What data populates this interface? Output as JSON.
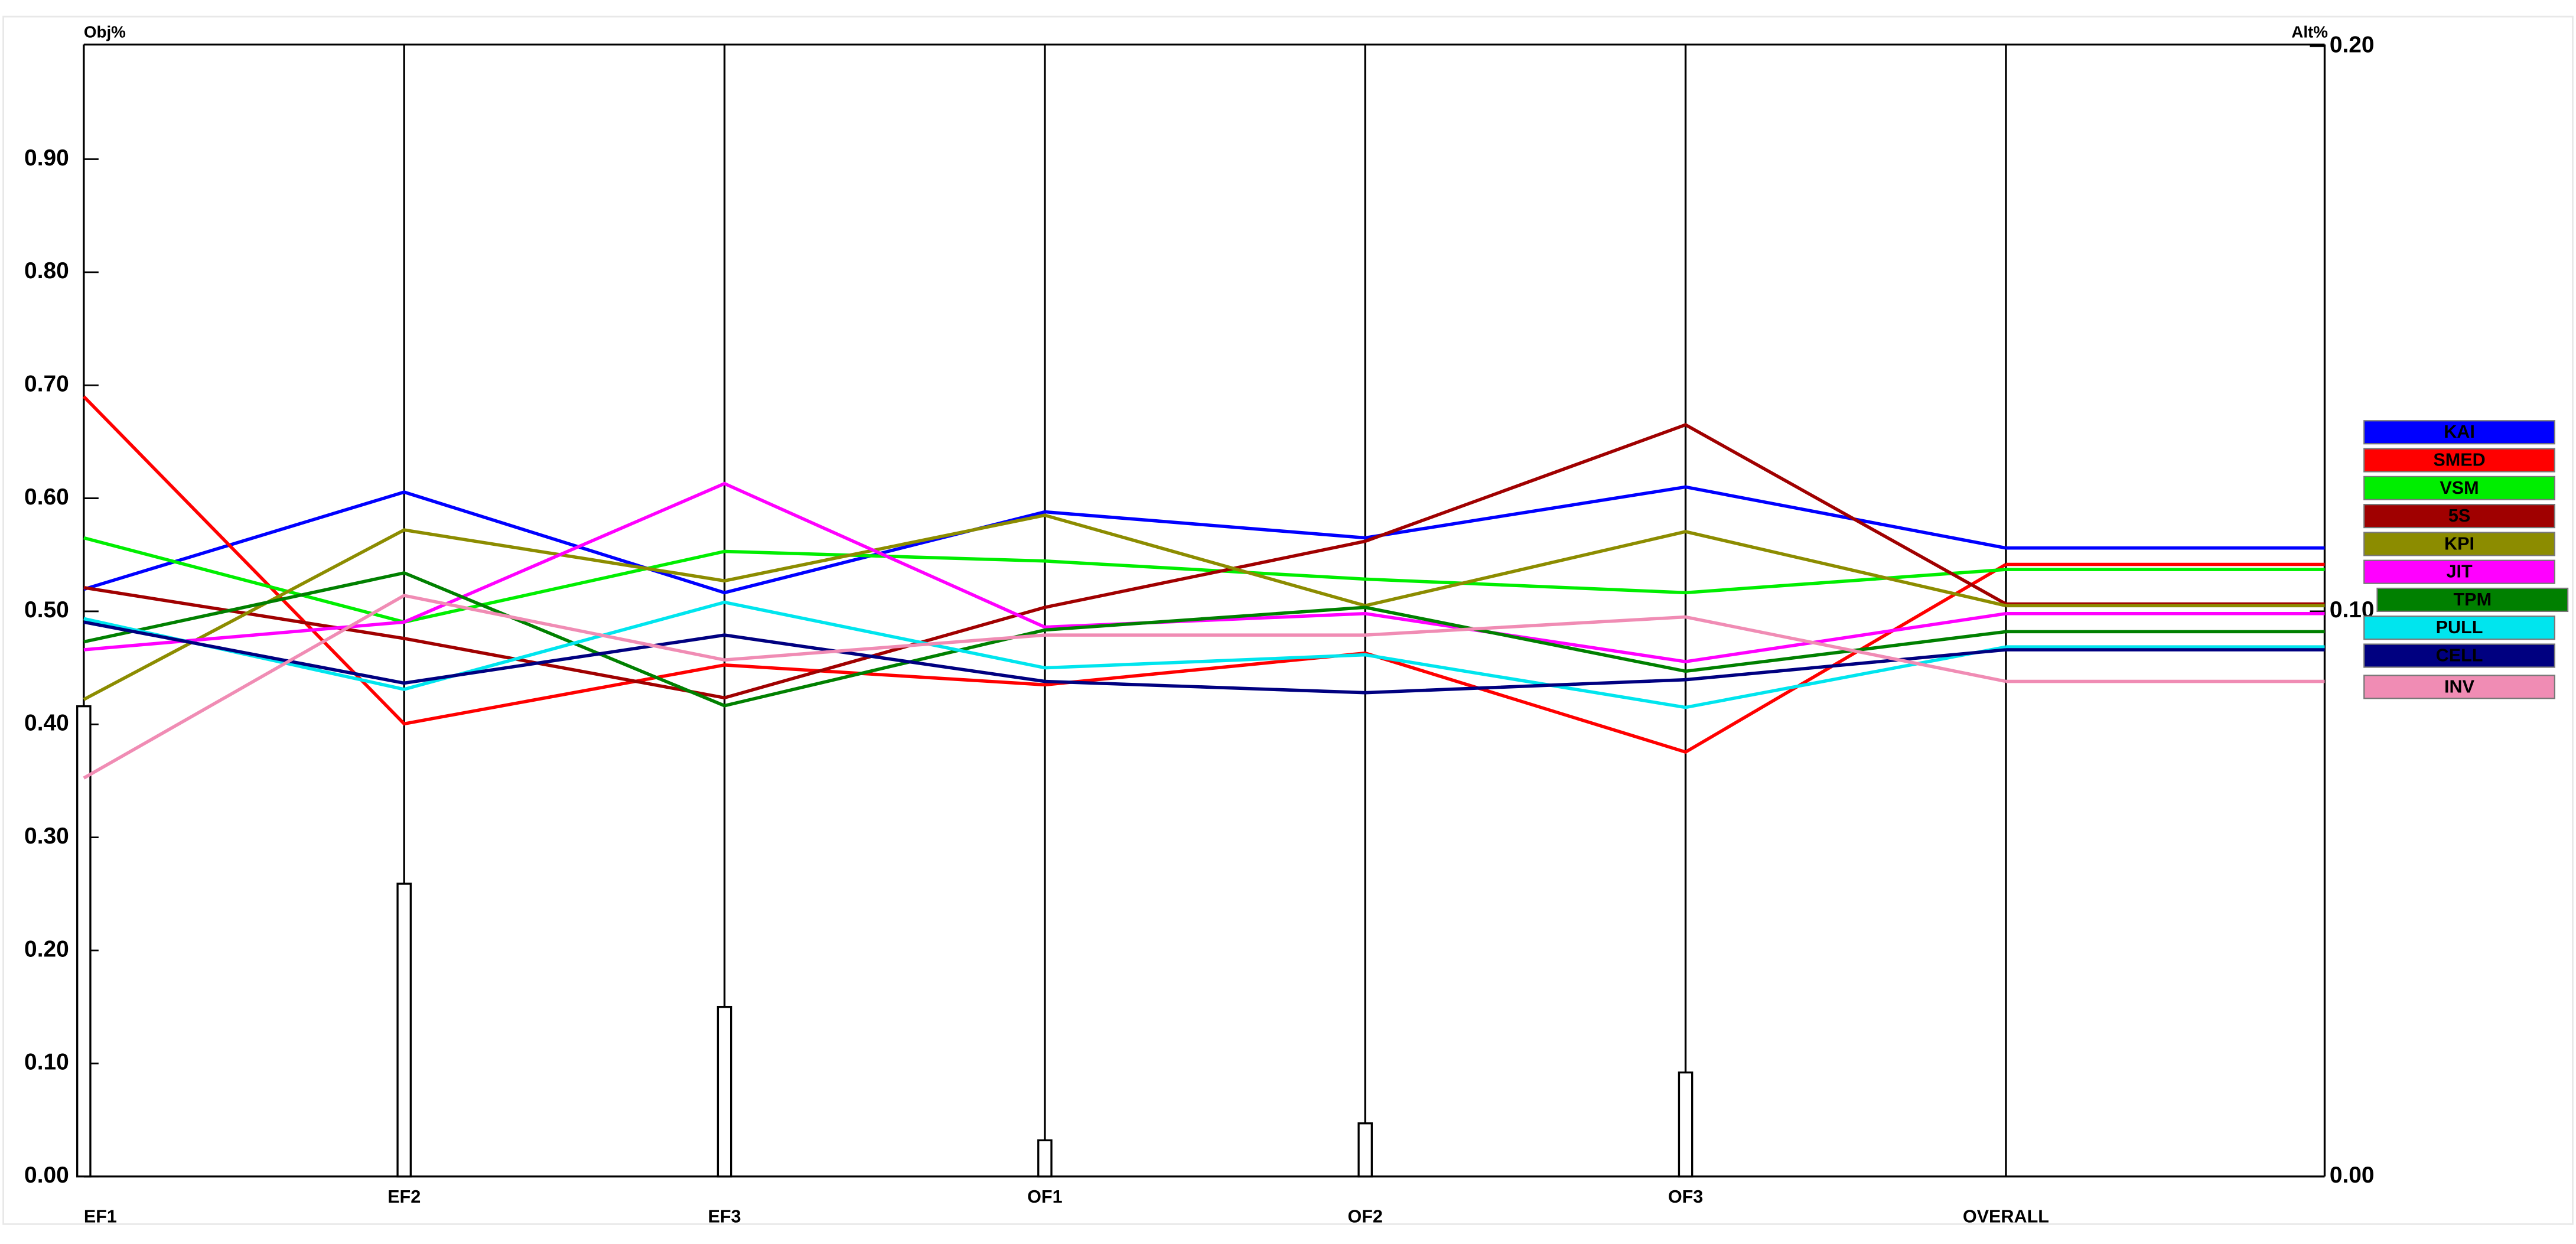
{
  "chart_data": {
    "type": "line",
    "y_label": "Obj%",
    "y2_label": "Alt%",
    "categories": [
      "EF1",
      "EF2",
      "EF3",
      "OF1",
      "OF2",
      "OF3",
      "OVERALL"
    ],
    "ylim": [
      0,
      1
    ],
    "yticks": [
      {
        "value": 0,
        "label": "0.00"
      },
      {
        "value": 0.1,
        "label": "0.10"
      },
      {
        "value": 0.2,
        "label": "0.20"
      },
      {
        "value": 0.3,
        "label": "0.30"
      },
      {
        "value": 0.4,
        "label": "0.40"
      },
      {
        "value": 0.5,
        "label": "0.50"
      },
      {
        "value": 0.6,
        "label": "0.60"
      },
      {
        "value": 0.7,
        "label": "0.70"
      },
      {
        "value": 0.8,
        "label": "0.80"
      },
      {
        "value": 0.9,
        "label": "0.90"
      }
    ],
    "y2lim": [
      0,
      0.2
    ],
    "y2ticks": [
      {
        "value": 0,
        "label": "0.00"
      },
      {
        "value": 0.1,
        "label": "0.10"
      },
      {
        "value": 0.2,
        "label": "0.20"
      }
    ],
    "bars": {
      "values": [
        0.416,
        0.259,
        0.15,
        0.032,
        0.047,
        0.092,
        null
      ]
    },
    "series": [
      {
        "name": "KAI",
        "color": "#0000ff",
        "axis": "y2",
        "values": [
          0.1039,
          0.1211,
          0.1033,
          0.1176,
          0.113,
          0.122,
          0.1112
        ]
      },
      {
        "name": "SMED",
        "color": "#ff0000",
        "axis": "y2",
        "values": [
          0.138,
          0.0801,
          0.0905,
          0.087,
          0.0926,
          0.0751,
          0.1083
        ]
      },
      {
        "name": "VSM",
        "color": "#00ee00",
        "axis": "y2",
        "values": [
          0.113,
          0.0981,
          0.1106,
          0.1089,
          0.1057,
          0.1033,
          0.1074
        ]
      },
      {
        "name": "5S",
        "color": "#a00000",
        "axis": "y2",
        "values": [
          0.1042,
          0.0952,
          0.0847,
          0.1007,
          0.1124,
          0.133,
          0.1013
        ]
      },
      {
        "name": "KPI",
        "color": "#8c8c00",
        "axis": "y2",
        "values": [
          0.0844,
          0.1144,
          0.1054,
          0.117,
          0.101,
          0.1141,
          0.101
        ]
      },
      {
        "name": "JIT",
        "color": "#ff00ff",
        "axis": "y2",
        "values": [
          0.0932,
          0.0981,
          0.1226,
          0.0972,
          0.0996,
          0.0911,
          0.0996
        ]
      },
      {
        "name": "TPM",
        "color": "#008000",
        "axis": "y2",
        "values": [
          0.0946,
          0.1068,
          0.0833,
          0.0967,
          0.1007,
          0.0894,
          0.0964
        ]
      },
      {
        "name": "PULL",
        "color": "#00e5ee",
        "axis": "y2",
        "values": [
          0.0987,
          0.0862,
          0.1016,
          0.09,
          0.0923,
          0.083,
          0.0937
        ]
      },
      {
        "name": "CELL",
        "color": "#000080",
        "axis": "y2",
        "values": [
          0.0981,
          0.0873,
          0.0958,
          0.0876,
          0.0856,
          0.0879,
          0.0932
        ]
      },
      {
        "name": "INV",
        "color": "#f08cb4",
        "axis": "y2",
        "values": [
          0.0705,
          0.1028,
          0.0914,
          0.0958,
          0.0958,
          0.099,
          0.0876
        ]
      }
    ]
  }
}
